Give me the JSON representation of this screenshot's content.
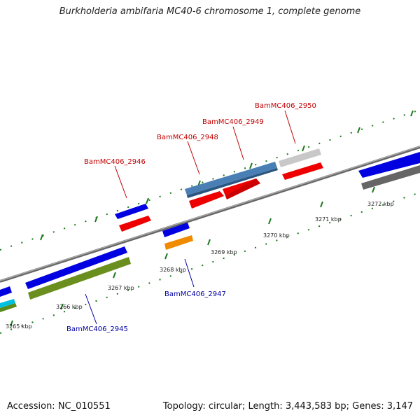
{
  "header": {
    "title": "Burkholderia ambifaria MC40-6 chromosome 1, complete genome"
  },
  "footer": {
    "accession": "Accession: NC_010551",
    "summary": "Topology: circular; Length: 3,443,583 bp; Genes: 3,147"
  },
  "colors": {
    "forward_label": "#c00000",
    "reverse_label": "#0000a0",
    "tick": "#1a7a1a",
    "backbone": "#888888"
  },
  "scale": {
    "unit": "kbp",
    "ticks": [
      {
        "label": "3265 kbp"
      },
      {
        "label": "3266 kbp"
      },
      {
        "label": "3267 kbp"
      },
      {
        "label": "3268 kbp"
      },
      {
        "label": "3269 kbp"
      },
      {
        "label": "3270 kbp"
      },
      {
        "label": "3271 kbp"
      },
      {
        "label": "3272 kbp"
      }
    ]
  },
  "gene_labels": [
    {
      "name": "BamMC406_2946",
      "strand": "forward"
    },
    {
      "name": "BamMC406_2948",
      "strand": "forward"
    },
    {
      "name": "BamMC406_2949",
      "strand": "forward"
    },
    {
      "name": "BamMC406_2950",
      "strand": "forward"
    },
    {
      "name": "BamMC406_2947",
      "strand": "reverse"
    },
    {
      "name": "BamMC406_2945",
      "strand": "reverse"
    }
  ]
}
